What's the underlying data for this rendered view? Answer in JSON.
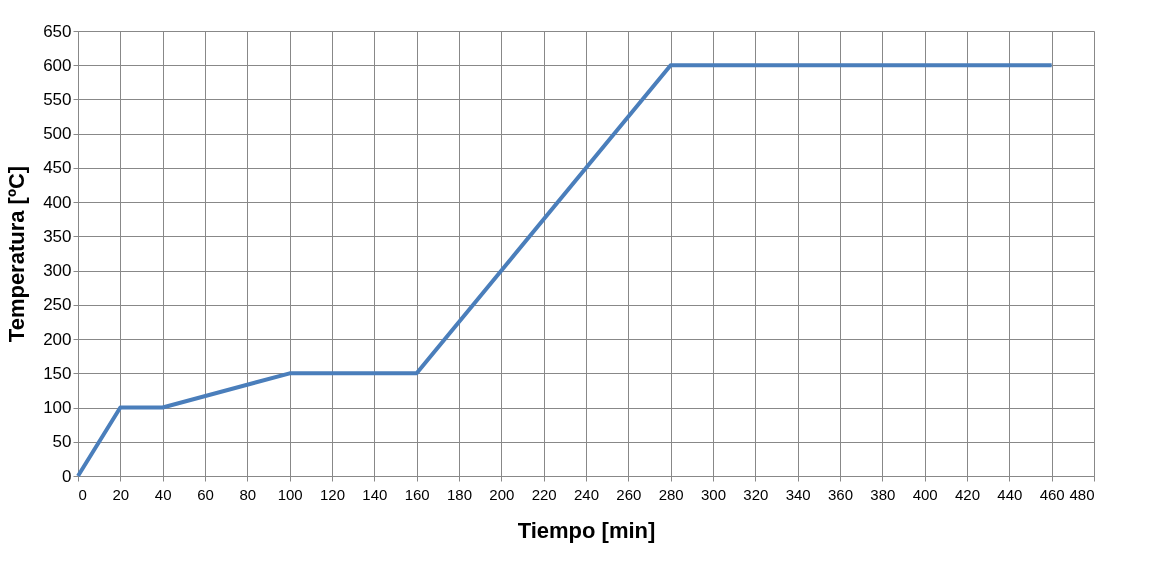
{
  "chart_data": {
    "type": "line",
    "xlabel": "Tiempo  [min]",
    "ylabel": "Temperatura   [ºC]",
    "x": [
      0,
      20,
      40,
      100,
      160,
      280,
      460
    ],
    "series": [
      {
        "color": "#4a7ebb",
        "values": [
          0,
          100,
          100,
          150,
          150,
          600,
          600
        ]
      }
    ],
    "xlim": [
      0,
      480
    ],
    "xticks": [
      0,
      20,
      40,
      60,
      80,
      100,
      120,
      140,
      160,
      180,
      200,
      220,
      240,
      260,
      280,
      300,
      320,
      340,
      360,
      380,
      400,
      420,
      440,
      460,
      480
    ],
    "ylim": [
      0,
      650
    ],
    "yticks": [
      0,
      50,
      100,
      150,
      200,
      250,
      300,
      350,
      400,
      450,
      500,
      550,
      600,
      650
    ],
    "grid": true,
    "legend": false,
    "marker": "none",
    "line_style": "solid"
  }
}
